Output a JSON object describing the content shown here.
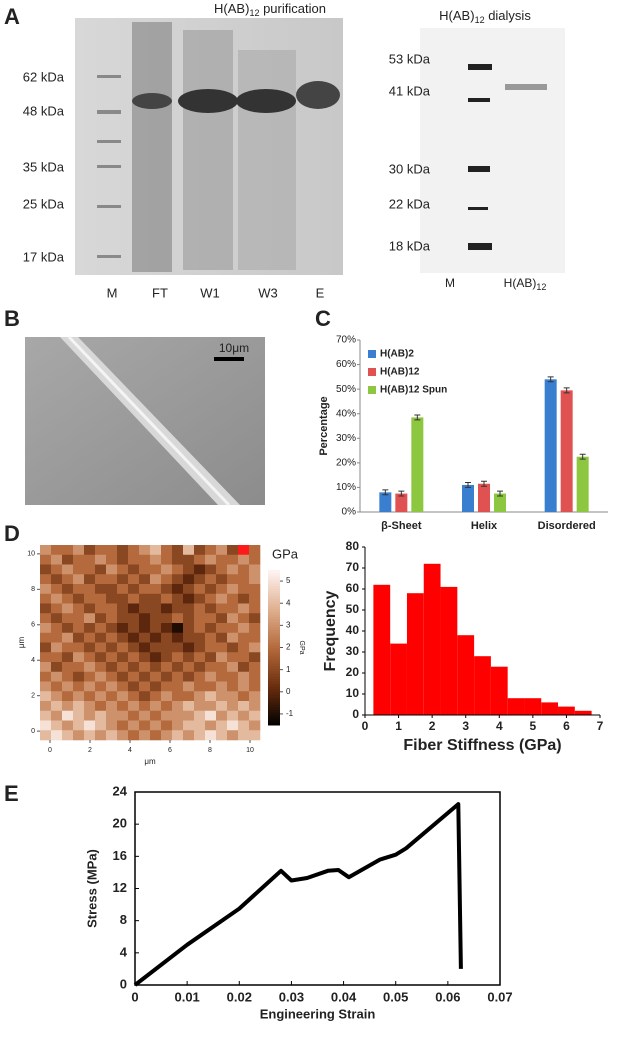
{
  "panels": {
    "A": {
      "label": "A",
      "purification": {
        "title": [
          "H(AB)",
          "12",
          " purification"
        ],
        "markers": [
          "62 kDa",
          "48 kDa",
          "35 kDa",
          "25 kDa",
          "17 kDa"
        ],
        "lanes": [
          "M",
          "FT",
          "W1",
          "W3",
          "E"
        ]
      },
      "dialysis": {
        "title": [
          "H(AB)",
          "12",
          " dialysis"
        ],
        "markers": [
          "53 kDa",
          "41 kDa",
          "30 kDa",
          "22 kDa",
          "18 kDa"
        ],
        "lanes": [
          {
            "text": "M"
          },
          {
            "text": "H(AB)",
            "sub": "12"
          }
        ]
      }
    },
    "B": {
      "label": "B",
      "scale_bar": "10μm"
    },
    "C": {
      "label": "C"
    },
    "D": {
      "label": "D"
    },
    "E": {
      "label": "E"
    }
  },
  "chart_data": [
    {
      "type": "bar",
      "y_label": "Percentage",
      "categories": [
        "β-Sheet",
        "Helix",
        "Disordered"
      ],
      "series": [
        {
          "name": "H(AB)2",
          "color": "#3a7fcf",
          "values": [
            8,
            11,
            54
          ],
          "errors": [
            1,
            1,
            1
          ]
        },
        {
          "name": "H(AB)12",
          "color": "#e05252",
          "values": [
            7.5,
            11.5,
            49.5
          ],
          "errors": [
            1,
            1,
            1
          ]
        },
        {
          "name": "H(AB)12 Spun",
          "color": "#8dc63f",
          "values": [
            38.5,
            7.5,
            22.5
          ],
          "errors": [
            1,
            1,
            1
          ]
        }
      ],
      "ylim": [
        0,
        70
      ],
      "yticks": [
        {
          "value": 0,
          "label": "0%"
        },
        {
          "value": 10,
          "label": "10%"
        },
        {
          "value": 20,
          "label": "20%"
        },
        {
          "value": 30,
          "label": "30%"
        },
        {
          "value": 40,
          "label": "40%"
        },
        {
          "value": 50,
          "label": "50%"
        },
        {
          "value": 60,
          "label": "60%"
        },
        {
          "value": 70,
          "label": "70%"
        }
      ],
      "legend": "top-left"
    },
    {
      "type": "heatmap",
      "x_label": "μm",
      "y_label": "μm",
      "colorbar_label": "GPa",
      "xlim": [
        -0.5,
        10.5
      ],
      "ylim": [
        -0.5,
        10.5
      ],
      "xticks": [
        0,
        2,
        4,
        6,
        8,
        10
      ],
      "yticks": [
        0,
        2,
        4,
        6,
        8,
        10
      ],
      "zlim": [
        -1.5,
        5.5
      ],
      "zticks": [
        -1,
        0,
        1,
        2,
        3,
        4,
        5
      ],
      "colormap": [
        "#000000",
        "#6b2e0e",
        "#b46a3c",
        "#e0b090",
        "#fff4f4"
      ],
      "over_color": "#ff1a1a",
      "z": [
        [
          3,
          2,
          2,
          3,
          1,
          2,
          2,
          1,
          2,
          3,
          4,
          2,
          1,
          4,
          1,
          2,
          3,
          1,
          6,
          2
        ],
        [
          2,
          3,
          1,
          2,
          2,
          3,
          2,
          1,
          2,
          2,
          3,
          2,
          1,
          1,
          2,
          3,
          2,
          2,
          3,
          2
        ],
        [
          1,
          2,
          3,
          2,
          2,
          1,
          3,
          2,
          1,
          2,
          2,
          3,
          2,
          1,
          0,
          1,
          2,
          3,
          2,
          3
        ],
        [
          2,
          1,
          2,
          3,
          1,
          2,
          2,
          1,
          2,
          1,
          3,
          2,
          1,
          0,
          1,
          2,
          1,
          2,
          2,
          3
        ],
        [
          3,
          2,
          1,
          2,
          2,
          1,
          1,
          2,
          1,
          2,
          2,
          1,
          0,
          1,
          2,
          1,
          2,
          3,
          2,
          2
        ],
        [
          2,
          3,
          2,
          1,
          2,
          2,
          1,
          1,
          2,
          1,
          1,
          2,
          1,
          0,
          1,
          2,
          3,
          2,
          1,
          2
        ],
        [
          1,
          2,
          3,
          2,
          1,
          2,
          2,
          1,
          0,
          1,
          1,
          0,
          1,
          1,
          2,
          1,
          2,
          2,
          3,
          2
        ],
        [
          2,
          1,
          2,
          2,
          3,
          1,
          2,
          1,
          1,
          0,
          1,
          1,
          2,
          1,
          2,
          2,
          1,
          3,
          2,
          1
        ],
        [
          3,
          2,
          1,
          2,
          1,
          2,
          1,
          0,
          1,
          0,
          1,
          0,
          -1,
          1,
          2,
          1,
          2,
          2,
          3,
          2
        ],
        [
          2,
          2,
          3,
          1,
          2,
          1,
          2,
          1,
          0,
          1,
          0,
          1,
          0,
          1,
          1,
          2,
          1,
          3,
          2,
          2
        ],
        [
          1,
          3,
          2,
          2,
          1,
          2,
          1,
          2,
          1,
          0,
          1,
          1,
          1,
          0,
          1,
          2,
          2,
          1,
          2,
          3
        ],
        [
          2,
          2,
          1,
          3,
          2,
          1,
          2,
          1,
          2,
          1,
          0,
          1,
          2,
          1,
          2,
          1,
          3,
          2,
          2,
          1
        ],
        [
          3,
          1,
          2,
          2,
          3,
          2,
          1,
          2,
          1,
          2,
          1,
          2,
          1,
          2,
          1,
          2,
          2,
          3,
          1,
          2
        ],
        [
          2,
          3,
          2,
          1,
          2,
          3,
          2,
          1,
          2,
          1,
          2,
          1,
          2,
          1,
          2,
          3,
          2,
          2,
          3,
          2
        ],
        [
          3,
          2,
          3,
          2,
          3,
          2,
          3,
          2,
          1,
          2,
          1,
          2,
          2,
          3,
          2,
          2,
          3,
          2,
          3,
          2
        ],
        [
          4,
          3,
          2,
          3,
          2,
          3,
          2,
          3,
          2,
          1,
          2,
          3,
          2,
          2,
          3,
          4,
          3,
          3,
          2,
          3
        ],
        [
          3,
          4,
          3,
          4,
          3,
          2,
          3,
          2,
          3,
          2,
          3,
          2,
          3,
          4,
          3,
          3,
          4,
          3,
          4,
          3
        ],
        [
          4,
          3,
          5,
          4,
          3,
          4,
          3,
          3,
          2,
          3,
          2,
          3,
          3,
          3,
          4,
          5,
          3,
          4,
          3,
          4
        ],
        [
          5,
          4,
          3,
          4,
          5,
          4,
          3,
          2,
          3,
          2,
          3,
          2,
          3,
          4,
          4,
          3,
          4,
          5,
          4,
          3
        ],
        [
          4,
          5,
          4,
          3,
          4,
          3,
          4,
          3,
          2,
          3,
          2,
          3,
          4,
          3,
          4,
          5,
          4,
          3,
          4,
          4
        ]
      ]
    },
    {
      "type": "histogram",
      "x_label": "Fiber Stiffness (GPa)",
      "y_label": "Frequency",
      "color": "#ff0000",
      "bins": [
        0.25,
        0.75,
        1.25,
        1.75,
        2.25,
        2.75,
        3.25,
        3.75,
        4.25,
        4.75,
        5.25,
        5.75,
        6.25,
        6.75
      ],
      "values": [
        62,
        34,
        58,
        72,
        61,
        38,
        28,
        23,
        8,
        8,
        6,
        4,
        2
      ],
      "xlim": [
        0,
        7
      ],
      "xticks": [
        0,
        1,
        2,
        3,
        4,
        5,
        6,
        7
      ],
      "ylim": [
        0,
        80
      ],
      "yticks": [
        0,
        10,
        20,
        30,
        40,
        50,
        60,
        70,
        80
      ]
    },
    {
      "type": "line",
      "x_label": "Engineering Strain",
      "y_label": "Stress (MPa)",
      "color": "#000000",
      "x": [
        0,
        0.01,
        0.02,
        0.028,
        0.03,
        0.033,
        0.037,
        0.039,
        0.041,
        0.047,
        0.05,
        0.052,
        0.062,
        0.0625
      ],
      "y": [
        0,
        5,
        9.5,
        14.2,
        13,
        13.3,
        14.2,
        14.3,
        13.4,
        15.6,
        16.2,
        17,
        22.5,
        2
      ],
      "xlim": [
        0,
        0.07
      ],
      "xticks": [
        0,
        0.01,
        0.02,
        0.03,
        0.04,
        0.05,
        0.06,
        0.07
      ],
      "ylim": [
        0,
        24
      ],
      "yticks": [
        0,
        4,
        8,
        12,
        16,
        20,
        24
      ]
    }
  ]
}
